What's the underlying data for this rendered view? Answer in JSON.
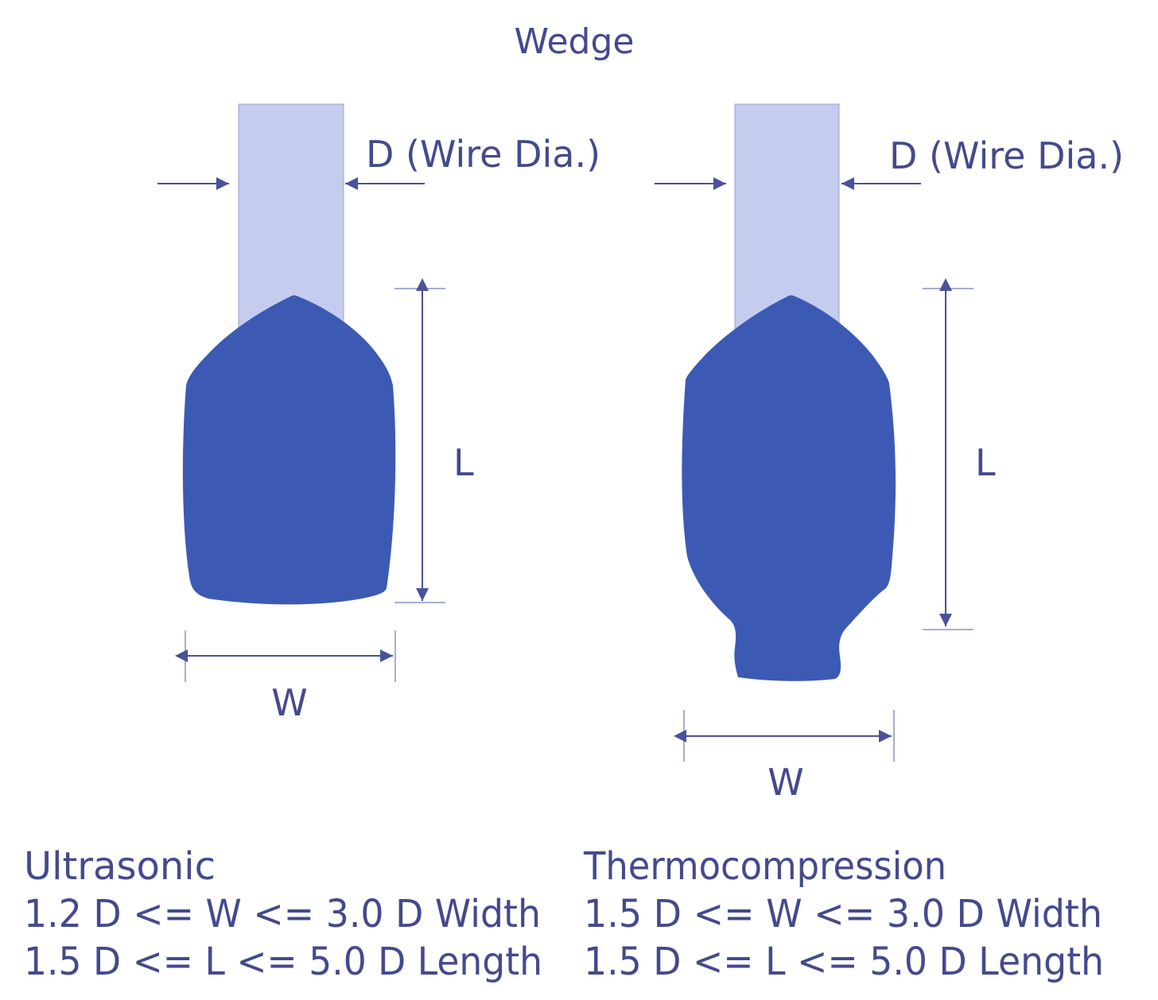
{
  "title": "Wedge",
  "colors": {
    "text": "#444a8c",
    "wire": "#c4ccef",
    "bond": "#3c5ab3",
    "dimension_line": "#4b519a"
  },
  "left": {
    "wire_label": "D (Wire Dia.)",
    "length_label": "L",
    "width_label": "W",
    "heading": "Ultrasonic",
    "width_rule": "1.2 D <= W <= 3.0 D Width",
    "length_rule": "1.5 D <= L <= 5.0 D Length"
  },
  "right": {
    "wire_label": "D (Wire Dia.)",
    "length_label": "L",
    "width_label": "W",
    "heading": "Thermocompression",
    "width_rule": "1.5 D <= W <= 3.0 D Width",
    "length_rule": "1.5 D <= L <= 5.0 D Length"
  }
}
